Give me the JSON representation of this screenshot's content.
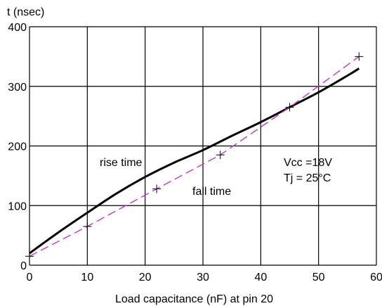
{
  "chart_data": {
    "type": "line",
    "xlabel": "Load capacitance (nF) at pin 20",
    "ylabel": "t (nsec)",
    "xlim": [
      0,
      60
    ],
    "ylim": [
      0,
      400
    ],
    "xticks": [
      0,
      10,
      20,
      30,
      40,
      50,
      60
    ],
    "yticks": [
      0,
      100,
      200,
      300,
      400
    ],
    "grid": true,
    "series": [
      {
        "name": "rise time",
        "color": "#000000",
        "style": "solid",
        "markers": false,
        "x": [
          0,
          5,
          10,
          15,
          20,
          25,
          30,
          35,
          40,
          45,
          50,
          55,
          57
        ],
        "y": [
          20,
          55,
          88,
          120,
          148,
          172,
          193,
          217,
          240,
          265,
          290,
          318,
          330
        ]
      },
      {
        "name": "fall time",
        "color": "#cc33cc",
        "style": "dashed",
        "markers": true,
        "x": [
          0,
          10,
          22,
          33,
          45,
          57
        ],
        "y": [
          15,
          65,
          128,
          185,
          265,
          350
        ]
      }
    ],
    "annotations": {
      "rise_label": "rise time",
      "fall_label": "fall time",
      "vcc": "Vcc =18V",
      "tj": "Tj = 25°C"
    }
  }
}
